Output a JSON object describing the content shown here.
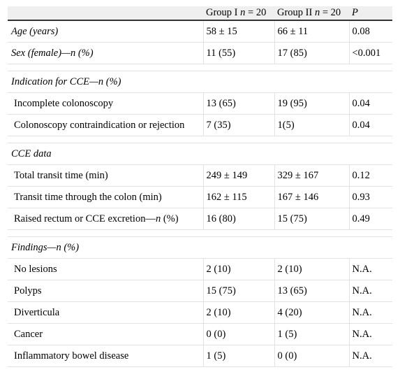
{
  "header": {
    "group1_label": "Group I ",
    "group1_n": "n",
    "group1_value": " = 20",
    "group2_label": "Group II ",
    "group2_n": "n",
    "group2_value": " = 20",
    "p_label": "P"
  },
  "rows": {
    "age": {
      "label": "Age (years)",
      "g1": "58 ± 15",
      "g2": "66 ± 11",
      "p": "0.08"
    },
    "sex": {
      "label": "Sex (female)—n (%)",
      "g1": "11 (55)",
      "g2": "17 (85)",
      "p": "<0.001"
    },
    "indication_title": "Indication for CCE—n (%)",
    "incomplete": {
      "label": "Incomplete colonoscopy",
      "g1": "13 (65)",
      "g2": "19 (95)",
      "p": "0.04"
    },
    "contra": {
      "label": "Colonoscopy contraindication or rejection",
      "g1": "7 (35)",
      "g2": "1(5)",
      "p": "0.04"
    },
    "cce_title": "CCE data",
    "transit": {
      "label": "Total transit time (min)",
      "g1": "249 ± 149",
      "g2": "329 ± 167",
      "p": "0.12"
    },
    "colon": {
      "label": "Transit time through the colon (min)",
      "g1": "162 ± 115",
      "g2": "167 ± 146",
      "p": "0.93"
    },
    "raised": {
      "label_a": "Raised rectum or CCE excretion—",
      "label_n": "n",
      "label_b": " (%)",
      "g1": "16 (80)",
      "g2": "15 (75)",
      "p": "0.49"
    },
    "findings_title": "Findings—n (%)",
    "nolesions": {
      "label": "No lesions",
      "g1": "2 (10)",
      "g2": "2 (10)",
      "p": "N.A."
    },
    "polyps": {
      "label": "Polyps",
      "g1": "15 (75)",
      "g2": "13 (65)",
      "p": "N.A."
    },
    "diverticula": {
      "label": "Diverticula",
      "g1": "2 (10)",
      "g2": "4 (20)",
      "p": "N.A."
    },
    "cancer": {
      "label": "Cancer",
      "g1": "0 (0)",
      "g2": "1 (5)",
      "p": "N.A."
    },
    "ibd": {
      "label": "Inflammatory bowel disease",
      "g1": "1 (5)",
      "g2": "0 (0)",
      "p": "N.A."
    }
  }
}
